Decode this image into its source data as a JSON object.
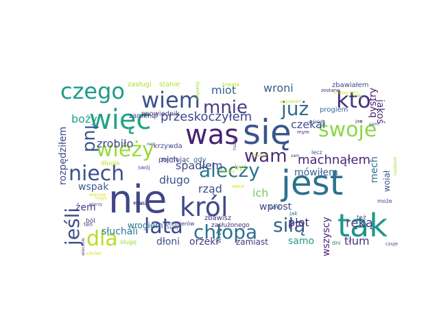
{
  "cloud": {
    "words": [
      {
        "text": "nie",
        "color": "#404788"
      },
      {
        "text": "się",
        "color": "#39568c"
      },
      {
        "text": "was",
        "color": "#482173"
      },
      {
        "text": "jest",
        "color": "#2c728e"
      },
      {
        "text": "tak",
        "color": "#1f968b"
      },
      {
        "text": "król",
        "color": "#3f4a8a"
      },
      {
        "text": "więc",
        "color": "#20a386"
      },
      {
        "text": "kto",
        "color": "#46337f"
      },
      {
        "text": "czego",
        "color": "#1e9b8a"
      },
      {
        "text": "wiem",
        "color": "#3b518b"
      },
      {
        "text": "lata",
        "color": "#3e4989"
      },
      {
        "text": "chłopa",
        "color": "#2d708e"
      },
      {
        "text": "siłą",
        "color": "#34618d"
      },
      {
        "text": "niech",
        "color": "#3c508b"
      },
      {
        "text": "aleczy",
        "color": "#2a778e"
      },
      {
        "text": "wieży",
        "color": "#9bd93c"
      },
      {
        "text": "dla",
        "color": "#b8de29"
      },
      {
        "text": "swoje",
        "color": "#8bd646"
      },
      {
        "text": "już",
        "color": "#2f6c8e"
      },
      {
        "text": "lud",
        "color": "#39568c"
      },
      {
        "text": "mnie",
        "color": "#433e85"
      },
      {
        "text": "wam",
        "color": "#472d7b"
      },
      {
        "text": "jeśli",
        "color": "#3d4e8a"
      },
      {
        "text": "przeskoczyłem",
        "color": "#404688"
      },
      {
        "text": "machnąłem",
        "color": "#482475"
      },
      {
        "text": "czekał",
        "color": "#3a548c"
      },
      {
        "text": "wroni",
        "color": "#365c8d"
      },
      {
        "text": "miot",
        "color": "#355f8d"
      },
      {
        "text": "długo",
        "color": "#39558c"
      },
      {
        "text": "rząd",
        "color": "#3d4d8a"
      },
      {
        "text": "ich",
        "color": "#6ccd5a"
      },
      {
        "text": "spadłem",
        "color": "#3e4a89"
      },
      {
        "text": "zrobiło",
        "color": "#3f4889"
      },
      {
        "text": "boży",
        "color": "#1fa287"
      },
      {
        "text": "mówiłem",
        "color": "#31668e"
      },
      {
        "text": "płot",
        "color": "#482576"
      },
      {
        "text": "ręką",
        "color": "#453882"
      },
      {
        "text": "wprost",
        "color": "#414487"
      },
      {
        "text": "tłum",
        "color": "#46307e"
      },
      {
        "text": "samo",
        "color": "#1f9a8a"
      },
      {
        "text": "dłoni",
        "color": "#3b528b"
      },
      {
        "text": "orzekł",
        "color": "#453781"
      },
      {
        "text": "zamiast",
        "color": "#46337f"
      },
      {
        "text": "wszyscy",
        "color": "#481f70"
      },
      {
        "text": "słuchali",
        "color": "#2a788e"
      },
      {
        "text": "wspak",
        "color": "#38598c"
      },
      {
        "text": "żem",
        "color": "#453781"
      },
      {
        "text": "wrogiem",
        "color": "#2e6d8e"
      },
      {
        "text": "rozpędziłem",
        "color": "#3f4788"
      },
      {
        "text": "jakoś",
        "color": "#472f7d"
      },
      {
        "text": "bystry",
        "color": "#481b6d"
      },
      {
        "text": "mech",
        "color": "#2e6f8e"
      },
      {
        "text": "woiał",
        "color": "#38578c"
      },
      {
        "text": "nich",
        "color": "#3b518b"
      },
      {
        "text": "spowiednik",
        "color": "#44397f"
      },
      {
        "text": "zamknął",
        "color": "#414487"
      },
      {
        "text": "zasługi",
        "color": "#addc30"
      },
      {
        "text": "stanie",
        "color": "#b5de2b"
      },
      {
        "text": "krzywda",
        "color": "#3f4788"
      },
      {
        "text": "pojmując",
        "color": "#414287"
      },
      {
        "text": "progiem",
        "color": "#33638d"
      },
      {
        "text": "zbawiałem",
        "color": "#3e4989"
      },
      {
        "text": "być",
        "color": "#addc30"
      },
      {
        "text": "gdy",
        "color": "#33638d"
      },
      {
        "text": "swój",
        "color": "#3a548c"
      },
      {
        "text": "długie",
        "color": "#c2df23"
      },
      {
        "text": "zbawisz",
        "color": "#46307e"
      },
      {
        "text": "wróg",
        "color": "#2d718e"
      },
      {
        "text": "swe",
        "color": "#33638d"
      },
      {
        "text": "lecz",
        "color": "#3a548c"
      },
      {
        "text": "zasłużonego",
        "color": "#482878"
      },
      {
        "text": "ból",
        "color": "#46337f"
      },
      {
        "text": "ten",
        "color": "#404688"
      },
      {
        "text": "sługę",
        "color": "#9fda3a"
      },
      {
        "text": "premierów",
        "color": "#414287"
      },
      {
        "text": "mas",
        "color": "#482475"
      },
      {
        "text": "może",
        "color": "#404688"
      },
      {
        "text": "też",
        "color": "#3a548c"
      },
      {
        "text": "dni",
        "color": "#2c738e"
      },
      {
        "text": "czuje",
        "color": "#404688"
      },
      {
        "text": "trwała",
        "color": "#c0df25"
      },
      {
        "text": "temu",
        "color": "#3e4a89"
      },
      {
        "text": "wśród",
        "color": "#3d4d8a"
      },
      {
        "text": "mym",
        "color": "#481a6c"
      },
      {
        "text": "jan",
        "color": "#46327e"
      },
      {
        "text": "sami",
        "color": "#3d4d8a"
      },
      {
        "text": "zostanę",
        "color": "#482071"
      },
      {
        "text": "zdanie",
        "color": "#c8e020"
      },
      {
        "text": "sam",
        "color": "#453781"
      },
      {
        "text": "jak",
        "color": "#2a768e"
      },
      {
        "text": "wypowiem",
        "color": "#bddf26"
      },
      {
        "text": "papieży",
        "color": "#a2da37"
      },
      {
        "text": "chrobie",
        "color": "#d5e21a"
      },
      {
        "text": "zrozpaczony",
        "color": "#dde318"
      },
      {
        "text": "chcieć",
        "color": "#cae11f"
      },
      {
        "text": "wiecznie",
        "color": "#443a83"
      },
      {
        "text": "najdziem",
        "color": "#a8db34"
      },
      {
        "text": "wieczne",
        "color": "#d8e219"
      },
      {
        "text": "mijały",
        "color": "#dfe318"
      },
      {
        "text": "masz",
        "color": "#3e4989"
      },
      {
        "text": "owce",
        "color": "#d5e21a"
      },
      {
        "text": "cały",
        "color": "#95d840"
      },
      {
        "text": "kiedy",
        "color": "#3f4889"
      },
      {
        "text": "wierzy",
        "color": "#3e4989"
      },
      {
        "text": "nas",
        "color": "#46337f"
      }
    ]
  }
}
